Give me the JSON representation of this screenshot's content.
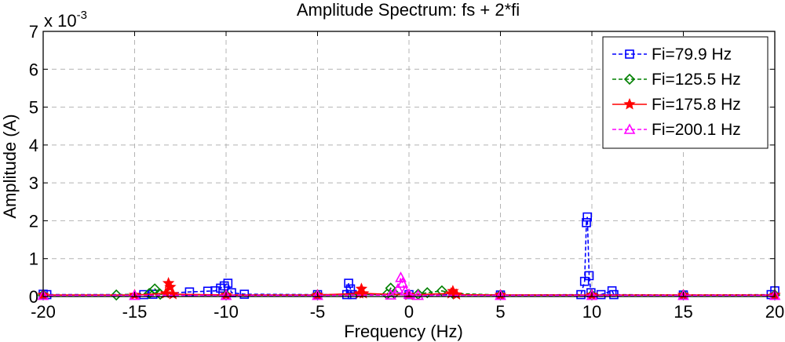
{
  "chart_data": {
    "type": "line",
    "title": "Amplitude Spectrum: fs + 2*fi",
    "xlabel": "Frequency (Hz)",
    "ylabel": "Amplitude (A)",
    "y_multiplier_label": "x 10",
    "y_multiplier_exp": "-3",
    "xlim": [
      -20,
      20
    ],
    "ylim": [
      0,
      7
    ],
    "grid": true,
    "grid_style": "dashed",
    "legend_position": "top-right",
    "xticks": [
      "-20",
      "-15",
      "-10",
      "-5",
      "0",
      "5",
      "10",
      "15",
      "20"
    ],
    "xtick_values": [
      -20,
      -15,
      -10,
      -5,
      0,
      5,
      10,
      15,
      20
    ],
    "yticks": [
      "0",
      "1",
      "2",
      "3",
      "4",
      "5",
      "6",
      "7"
    ],
    "ytick_values": [
      0,
      1,
      2,
      3,
      4,
      5,
      6,
      7
    ],
    "series": [
      {
        "name": "Fi=79.9 Hz",
        "color": "#0000ff",
        "marker": "square",
        "line": "dashed",
        "points": [
          [
            -20,
            0.06
          ],
          [
            -19.8,
            0.05
          ],
          [
            -14.5,
            0.05
          ],
          [
            -14,
            0.06
          ],
          [
            -12,
            0.12
          ],
          [
            -11,
            0.14
          ],
          [
            -10.6,
            0.15
          ],
          [
            -10.3,
            0.22
          ],
          [
            -10.1,
            0.28
          ],
          [
            -9.9,
            0.35
          ],
          [
            -9.7,
            0.1
          ],
          [
            -9,
            0.06
          ],
          [
            -5,
            0.05
          ],
          [
            -3.4,
            0.05
          ],
          [
            -3.3,
            0.35
          ],
          [
            -3.2,
            0.2
          ],
          [
            -3.1,
            0.05
          ],
          [
            0,
            0.05
          ],
          [
            5,
            0.04
          ],
          [
            9.4,
            0.05
          ],
          [
            9.6,
            0.4
          ],
          [
            9.7,
            1.95
          ],
          [
            9.75,
            2.1
          ],
          [
            9.85,
            0.55
          ],
          [
            9.95,
            0.1
          ],
          [
            10.5,
            0.05
          ],
          [
            11.1,
            0.15
          ],
          [
            11.2,
            0.05
          ],
          [
            15,
            0.04
          ],
          [
            19.8,
            0.05
          ],
          [
            20,
            0.15
          ]
        ]
      },
      {
        "name": "Fi=125.5 Hz",
        "color": "#008000",
        "marker": "diamond",
        "line": "dashed",
        "points": [
          [
            -20,
            0.04
          ],
          [
            -16,
            0.04
          ],
          [
            -14.2,
            0.08
          ],
          [
            -13.9,
            0.2
          ],
          [
            -13.6,
            0.06
          ],
          [
            -10,
            0.04
          ],
          [
            -5,
            0.04
          ],
          [
            -1.2,
            0.06
          ],
          [
            -1,
            0.22
          ],
          [
            -0.8,
            0.08
          ],
          [
            0.5,
            0.06
          ],
          [
            1,
            0.1
          ],
          [
            1.8,
            0.15
          ],
          [
            2.4,
            0.08
          ],
          [
            5,
            0.04
          ],
          [
            10,
            0.04
          ],
          [
            15,
            0.04
          ],
          [
            20,
            0.04
          ]
        ]
      },
      {
        "name": "Fi=175.8 Hz",
        "color": "#ff0000",
        "marker": "star",
        "line": "solid",
        "points": [
          [
            -20,
            0.04
          ],
          [
            -15,
            0.04
          ],
          [
            -13.3,
            0.08
          ],
          [
            -13.15,
            0.35
          ],
          [
            -13.05,
            0.25
          ],
          [
            -12.9,
            0.06
          ],
          [
            -10,
            0.04
          ],
          [
            -5,
            0.04
          ],
          [
            -2.7,
            0.08
          ],
          [
            -2.6,
            0.2
          ],
          [
            -2.5,
            0.08
          ],
          [
            0,
            0.04
          ],
          [
            2.3,
            0.08
          ],
          [
            2.4,
            0.14
          ],
          [
            2.6,
            0.05
          ],
          [
            5,
            0.04
          ],
          [
            10,
            0.04
          ],
          [
            15,
            0.04
          ],
          [
            20,
            0.04
          ]
        ]
      },
      {
        "name": "Fi=200.1 Hz",
        "color": "#ff00ff",
        "marker": "triangle",
        "line": "dashed",
        "points": [
          [
            -20,
            0.03
          ],
          [
            -15,
            0.03
          ],
          [
            -10,
            0.03
          ],
          [
            -5,
            0.03
          ],
          [
            -1,
            0.04
          ],
          [
            -0.6,
            0.2
          ],
          [
            -0.45,
            0.5
          ],
          [
            -0.35,
            0.35
          ],
          [
            -0.2,
            0.15
          ],
          [
            0,
            0.06
          ],
          [
            0.5,
            0.03
          ],
          [
            5,
            0.03
          ],
          [
            10,
            0.03
          ],
          [
            15,
            0.03
          ],
          [
            20,
            0.03
          ]
        ]
      }
    ]
  }
}
